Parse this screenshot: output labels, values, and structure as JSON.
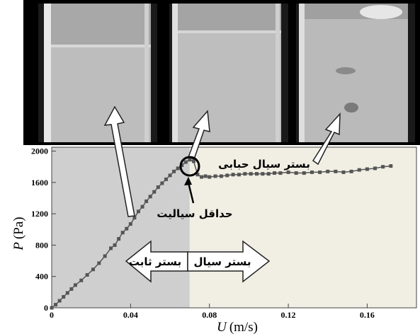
{
  "photos": [
    {
      "label": "fixed-bed-photo"
    },
    {
      "label": "minimum-fluidization-photo"
    },
    {
      "label": "bubbling-bed-photo"
    }
  ],
  "annotations": {
    "bubbling_bed": "بستر سیال حبابی",
    "min_fluidization": "حداقل سیالیت",
    "fixed_bed": "بستر ثابت",
    "fluidized_bed": "بستر سیال"
  },
  "colors": {
    "fixed_region": "#cfcfcf",
    "fluid_region": "#f1efe4",
    "series": "#555555",
    "photo_bg": "#000000"
  },
  "chart_data": {
    "type": "line",
    "xlabel_var": "U",
    "xlabel_unit": "(m/s)",
    "ylabel_var": "P",
    "ylabel_unit": "(Pa)",
    "xlim": [
      0,
      0.185
    ],
    "ylim": [
      0,
      2050
    ],
    "xticks": [
      0,
      0.04,
      0.08,
      0.12,
      0.16
    ],
    "xtick_labels": [
      "0",
      "0.04",
      "0.08",
      "0.12",
      "0.16"
    ],
    "yticks": [
      0,
      400,
      800,
      1200,
      1600,
      2000
    ],
    "ytick_labels": [
      "0",
      "400",
      "800",
      "1200",
      "1600",
      "2000"
    ],
    "u_mf": 0.07,
    "grid": false,
    "series": [
      {
        "marker": "square",
        "x": [
          0,
          0.002,
          0.004,
          0.006,
          0.008,
          0.01,
          0.012,
          0.015,
          0.018,
          0.021,
          0.024,
          0.027,
          0.03,
          0.032,
          0.034,
          0.036,
          0.038,
          0.04,
          0.042,
          0.044,
          0.046,
          0.048,
          0.05,
          0.052,
          0.054,
          0.056,
          0.058,
          0.06,
          0.062,
          0.064,
          0.066,
          0.068,
          0.07,
          0.072,
          0.074,
          0.076,
          0.078,
          0.08,
          0.083,
          0.086,
          0.089,
          0.092,
          0.095,
          0.098,
          0.101,
          0.104,
          0.107,
          0.11,
          0.113,
          0.116,
          0.12,
          0.124,
          0.128,
          0.132,
          0.136,
          0.14,
          0.144,
          0.148,
          0.152,
          0.156,
          0.16,
          0.164,
          0.168,
          0.172
        ],
        "y": [
          0,
          40,
          90,
          140,
          190,
          240,
          290,
          350,
          420,
          490,
          570,
          660,
          760,
          800,
          880,
          960,
          1010,
          1070,
          1150,
          1230,
          1290,
          1360,
          1420,
          1480,
          1540,
          1590,
          1640,
          1690,
          1740,
          1780,
          1820,
          1860,
          1890,
          1870,
          1700,
          1670,
          1680,
          1670,
          1680,
          1680,
          1690,
          1700,
          1700,
          1710,
          1710,
          1710,
          1710,
          1710,
          1720,
          1720,
          1730,
          1720,
          1720,
          1730,
          1730,
          1740,
          1740,
          1730,
          1740,
          1760,
          1770,
          1780,
          1800,
          1810
        ]
      }
    ]
  }
}
